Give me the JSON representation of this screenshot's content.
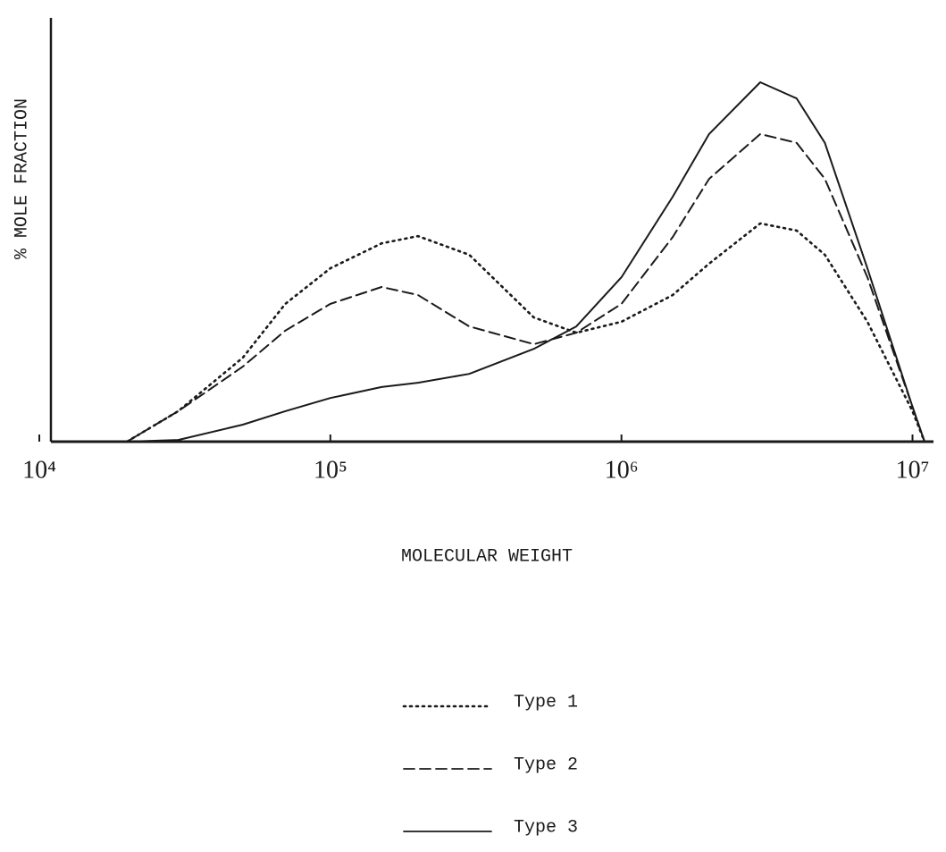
{
  "chart_data": {
    "type": "line",
    "x_label": "MOLECULAR WEIGHT",
    "y_label": "% MOLE FRACTION",
    "x": [
      20000,
      30000,
      50000,
      70000,
      100000,
      150000,
      200000,
      300000,
      500000,
      700000,
      1000000,
      1500000,
      2000000,
      3000000,
      4000000,
      5000000,
      7000000,
      10000000,
      11000000
    ],
    "series": [
      {
        "name": "Type 1",
        "color": "#1a1a1a",
        "dash": "dotted",
        "values": [
          0,
          7.2,
          19.8,
          32.5,
          40.9,
          46.8,
          48.5,
          44.1,
          29.3,
          25.7,
          28.3,
          34.6,
          42.0,
          51.5,
          49.8,
          44.1,
          28.3,
          7.2,
          0
        ]
      },
      {
        "name": "Type 2",
        "color": "#1a1a1a",
        "dash": "dashed",
        "values": [
          0,
          7.2,
          17.7,
          26.2,
          32.5,
          36.5,
          34.6,
          27.2,
          23.0,
          25.7,
          32.5,
          48.3,
          62.0,
          72.6,
          70.5,
          62.0,
          38.8,
          8.2,
          0
        ]
      },
      {
        "name": "Type 3",
        "color": "#1a1a1a",
        "dash": "solid",
        "values": [
          0,
          0.4,
          4.0,
          7.2,
          10.3,
          12.9,
          13.9,
          16.0,
          21.9,
          27.2,
          38.8,
          57.8,
          72.6,
          84.8,
          81.0,
          70.5,
          40.9,
          8.2,
          0
        ]
      }
    ],
    "xscale": "log",
    "xlim": [
      10000,
      11000000
    ],
    "xticks": [
      {
        "value": 10000,
        "label": "10⁴"
      },
      {
        "value": 100000,
        "label": "10⁵"
      },
      {
        "value": 1000000,
        "label": "10⁶"
      },
      {
        "value": 10000000,
        "label": "10⁷"
      }
    ],
    "ylim": [
      0,
      100
    ],
    "grid": false,
    "legend": "bottom"
  }
}
